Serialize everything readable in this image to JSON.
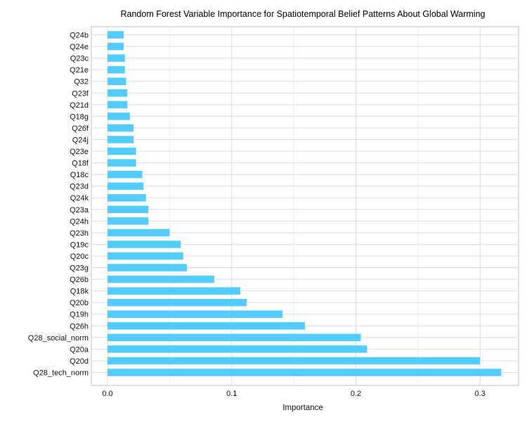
{
  "chart_data": {
    "type": "bar",
    "orientation": "horizontal",
    "title": "Random Forest Variable Importance for Spatiotemporal Belief Patterns About Global Warming",
    "xlabel": "Importance",
    "ylabel": "",
    "xlim": [
      -0.013,
      0.331
    ],
    "x_ticks": [
      0.0,
      0.1,
      0.2,
      0.3
    ],
    "x_tick_labels": [
      "0.0",
      "0.1",
      "0.2",
      "0.3"
    ],
    "grid": true,
    "bar_color": "#55CCFF",
    "categories": [
      "Q24b",
      "Q24e",
      "Q23c",
      "Q21e",
      "Q32",
      "Q23f",
      "Q21d",
      "Q18g",
      "Q26f",
      "Q24j",
      "Q23e",
      "Q18f",
      "Q18c",
      "Q23d",
      "Q24k",
      "Q23a",
      "Q24h",
      "Q23h",
      "Q19c",
      "Q20c",
      "Q23g",
      "Q26b",
      "Q18k",
      "Q20b",
      "Q19h",
      "Q26h",
      "Q28_social_norm",
      "Q20a",
      "Q20d",
      "Q28_tech_norm"
    ],
    "values": [
      0.013,
      0.013,
      0.014,
      0.014,
      0.015,
      0.016,
      0.016,
      0.018,
      0.021,
      0.021,
      0.023,
      0.023,
      0.028,
      0.029,
      0.031,
      0.033,
      0.033,
      0.05,
      0.059,
      0.061,
      0.064,
      0.086,
      0.107,
      0.112,
      0.141,
      0.159,
      0.204,
      0.209,
      0.3,
      0.317
    ]
  }
}
